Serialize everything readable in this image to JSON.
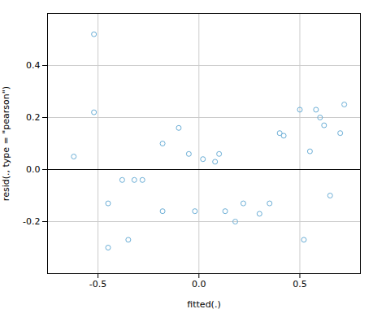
{
  "chart_data": {
    "type": "scatter",
    "xlabel": "fitted(.)",
    "ylabel": "resid(., type = \"pearson\")",
    "x": [
      -0.62,
      -0.52,
      -0.52,
      -0.45,
      -0.45,
      -0.38,
      -0.35,
      -0.32,
      -0.28,
      -0.18,
      -0.18,
      -0.1,
      -0.05,
      -0.02,
      0.02,
      0.08,
      0.1,
      0.13,
      0.18,
      0.22,
      0.3,
      0.35,
      0.4,
      0.42,
      0.5,
      0.52,
      0.55,
      0.58,
      0.6,
      0.62,
      0.65,
      0.7,
      0.72
    ],
    "values": [
      0.05,
      0.22,
      0.52,
      -0.13,
      -0.3,
      -0.04,
      -0.27,
      -0.04,
      -0.04,
      0.1,
      -0.16,
      0.16,
      0.06,
      -0.16,
      0.04,
      0.03,
      0.06,
      -0.16,
      -0.2,
      -0.13,
      -0.17,
      -0.13,
      0.14,
      0.13,
      0.23,
      -0.27,
      0.07,
      0.23,
      0.2,
      0.17,
      -0.1,
      0.14,
      0.25
    ],
    "color": "#6baed6",
    "marker": "circle",
    "reference_line": {
      "y": 0.0,
      "color": "#000000"
    },
    "xlim": [
      -0.75,
      0.8
    ],
    "ylim": [
      -0.4,
      0.6
    ],
    "xticks": [
      -0.5,
      {
        "value": 0.0,
        "label": "0.0"
      },
      0.5
    ],
    "yticks": [
      -0.2,
      {
        "value": 0.0,
        "label": "0.0"
      },
      0.2,
      0.4
    ],
    "grid": true
  }
}
